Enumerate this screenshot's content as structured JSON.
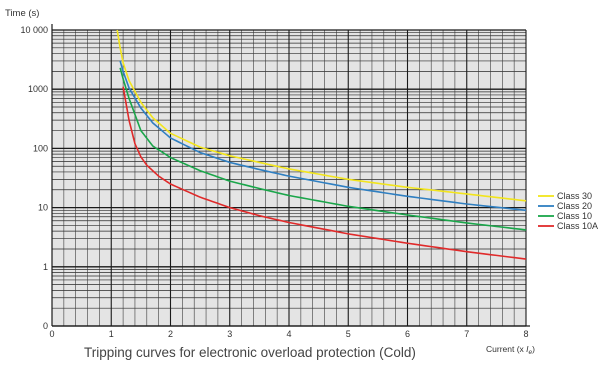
{
  "chart_data": {
    "type": "line",
    "title": "Tripping curves for electronic overload protection (Cold)",
    "ylabel": "Time (s)",
    "xlabel_prefix": "Current (x ",
    "xlabel_var": "I",
    "xlabel_sub": "e",
    "xlabel_suffix": ")",
    "y_scale": "log",
    "xlim": [
      0,
      8
    ],
    "ylim": [
      0.1,
      10000
    ],
    "x_ticks": [
      "0",
      "1",
      "2",
      "3",
      "4",
      "5",
      "6",
      "7",
      "8"
    ],
    "y_ticks": [
      {
        "value": 10000,
        "label": "10 000"
      },
      {
        "value": 1000,
        "label": "1000"
      },
      {
        "value": 100,
        "label": "100"
      },
      {
        "value": 10,
        "label": "10"
      },
      {
        "value": 1,
        "label": "1"
      },
      {
        "value": 0.1,
        "label": "0"
      }
    ],
    "grid": true,
    "legend_position": "right",
    "plot_background": "#e4e4e4",
    "series": [
      {
        "name": "Class 30",
        "color": "#f2e51c",
        "x": [
          1.1,
          1.15,
          1.2,
          1.3,
          1.5,
          1.7,
          2.0,
          2.5,
          3.0,
          3.5,
          4.0,
          5.0,
          6.0,
          7.0,
          8.0
        ],
        "y": [
          10000,
          5000,
          2800,
          1400,
          600,
          330,
          180,
          105,
          75,
          58,
          45,
          30,
          22,
          17,
          13
        ]
      },
      {
        "name": "Class 20",
        "color": "#2f7fc1",
        "x": [
          1.15,
          1.2,
          1.3,
          1.5,
          1.7,
          2.0,
          2.5,
          3.0,
          3.5,
          4.0,
          5.0,
          6.0,
          7.0,
          8.0
        ],
        "y": [
          3000,
          2000,
          1050,
          480,
          270,
          150,
          85,
          58,
          44,
          34,
          22,
          15.5,
          11.5,
          9
        ]
      },
      {
        "name": "Class 10",
        "color": "#1aa64a",
        "x": [
          1.15,
          1.2,
          1.3,
          1.5,
          1.7,
          2.0,
          2.5,
          3.0,
          3.5,
          4.0,
          5.0,
          6.0,
          7.0,
          8.0
        ],
        "y": [
          2300,
          1500,
          700,
          200,
          110,
          70,
          42,
          28,
          21,
          16,
          10.5,
          7.5,
          5.5,
          4.2
        ]
      },
      {
        "name": "Class 10A",
        "color": "#e02a2a",
        "x": [
          1.2,
          1.3,
          1.4,
          1.5,
          1.6,
          1.8,
          2.0,
          2.5,
          3.0,
          3.5,
          4.0,
          5.0,
          6.0,
          7.0,
          8.0
        ],
        "y": [
          1100,
          300,
          120,
          72,
          52,
          34,
          25,
          15,
          10,
          7.3,
          5.6,
          3.6,
          2.5,
          1.8,
          1.35
        ]
      }
    ]
  }
}
